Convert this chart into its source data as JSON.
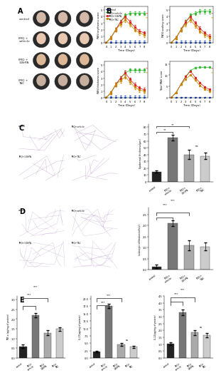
{
  "line_colors": {
    "control": "#2255cc",
    "IMQ+vehicle": "#33bb33",
    "IMQ+3-BrPA": "#dd2222",
    "IMQ+TAC": "#cc8800"
  },
  "time_days": [
    0,
    1,
    2,
    3,
    4,
    5,
    6,
    7,
    8
  ],
  "erythema": {
    "control": [
      0.05,
      0.05,
      0.05,
      0.05,
      0.05,
      0.05,
      0.05,
      0.05,
      0.05
    ],
    "IMQ+vehicle": [
      0.05,
      0.8,
      2.0,
      3.2,
      4.2,
      4.5,
      4.5,
      4.5,
      4.5
    ],
    "IMQ+3-BrPA": [
      0.05,
      0.8,
      2.0,
      3.2,
      4.0,
      3.2,
      2.4,
      1.8,
      1.5
    ],
    "IMQ+TAC": [
      0.05,
      0.8,
      2.0,
      2.8,
      3.5,
      2.8,
      2.0,
      1.5,
      1.2
    ]
  },
  "scaling": {
    "control": [
      0.05,
      0.05,
      0.05,
      0.05,
      0.05,
      0.05,
      0.05,
      0.05,
      0.05
    ],
    "IMQ+vehicle": [
      0.05,
      0.8,
      2.0,
      3.2,
      4.2,
      4.5,
      4.8,
      4.8,
      4.8
    ],
    "IMQ+3-BrPA": [
      0.05,
      0.8,
      2.0,
      3.2,
      4.0,
      3.0,
      2.2,
      1.5,
      1.0
    ],
    "IMQ+TAC": [
      0.05,
      0.8,
      2.0,
      2.8,
      3.5,
      2.6,
      1.8,
      1.2,
      0.8
    ]
  },
  "thickness": {
    "control": [
      0.05,
      0.05,
      0.05,
      0.05,
      0.05,
      0.05,
      0.05,
      0.05,
      0.05
    ],
    "IMQ+vehicle": [
      0.05,
      0.8,
      2.0,
      3.0,
      3.8,
      4.2,
      4.2,
      4.2,
      4.2
    ],
    "IMQ+3-BrPA": [
      0.05,
      0.8,
      2.0,
      3.0,
      3.8,
      2.8,
      2.0,
      1.5,
      1.2
    ],
    "IMQ+TAC": [
      0.05,
      0.8,
      2.0,
      2.6,
      3.2,
      2.4,
      1.6,
      1.2,
      1.0
    ]
  },
  "total_pasi": {
    "control": [
      0.15,
      0.15,
      0.15,
      0.15,
      0.15,
      0.15,
      0.15,
      0.15,
      0.15
    ],
    "IMQ+vehicle": [
      0.15,
      2.4,
      6.0,
      9.4,
      12.2,
      13.2,
      13.5,
      13.5,
      13.5
    ],
    "IMQ+3-BrPA": [
      0.15,
      2.4,
      6.0,
      9.4,
      11.8,
      9.0,
      6.6,
      4.8,
      3.7
    ],
    "IMQ+TAC": [
      0.15,
      2.4,
      6.0,
      8.2,
      10.2,
      7.8,
      5.4,
      3.9,
      3.0
    ]
  },
  "err_small": [
    0.1,
    0.2,
    0.25,
    0.3,
    0.3,
    0.3,
    0.3,
    0.3,
    0.3
  ],
  "bar_colors": [
    "#222222",
    "#777777",
    "#aaaaaa",
    "#cccccc"
  ],
  "epidermal_vals": [
    15,
    65,
    40,
    38
  ],
  "epidermal_err": [
    2,
    4,
    7,
    5
  ],
  "epidermal_ylim": [
    0,
    85
  ],
  "leuko_vals": [
    0.15,
    2.1,
    1.1,
    1.05
  ],
  "leuko_err": [
    0.08,
    0.12,
    0.22,
    0.18
  ],
  "leuko_ylim": [
    0,
    2.8
  ],
  "tnf_vals": [
    0.6,
    2.2,
    1.3,
    1.5
  ],
  "tnf_err": [
    0.08,
    0.12,
    0.12,
    0.09
  ],
  "tnf_ylim": [
    0,
    3.2
  ],
  "il17_vals": [
    2.2,
    17.5,
    4.5,
    3.8
  ],
  "il17_err": [
    0.3,
    0.7,
    0.5,
    0.4
  ],
  "il17_ylim": [
    0,
    21
  ],
  "il22_vals": [
    1.05,
    3.3,
    1.85,
    1.65
  ],
  "il22_err": [
    0.1,
    0.22,
    0.18,
    0.16
  ],
  "il22_ylim": [
    0,
    4.5
  ],
  "xlabel_b": "Time (Days)",
  "ylabel_b1": "PASI erythema score",
  "ylabel_b2": "PASI scaling score",
  "ylabel_b3": "PASI thickness score",
  "ylabel_b4": "Total PASI score",
  "ylabel_c": "Epidermal thickness(μm)",
  "ylabel_d": "Leukocyte infiltration(cells/μl)",
  "ylabel_e1": "TNF-α (pg/mg of protein)",
  "ylabel_e2": "IL-17(pg/mg of protein)",
  "ylabel_e3": "IL-22(pg/mg of protein)",
  "bar_xlabels": [
    "control",
    "IMQ+\nvehicle",
    "IMQ+\n3-BrPA",
    "IMQ+\nTAC"
  ],
  "groups_A": [
    "control",
    "IMQ +\nvehicle",
    "IMQ +\n3-BrPA",
    "IMQ +\nTAC"
  ],
  "bg": "#ffffff"
}
